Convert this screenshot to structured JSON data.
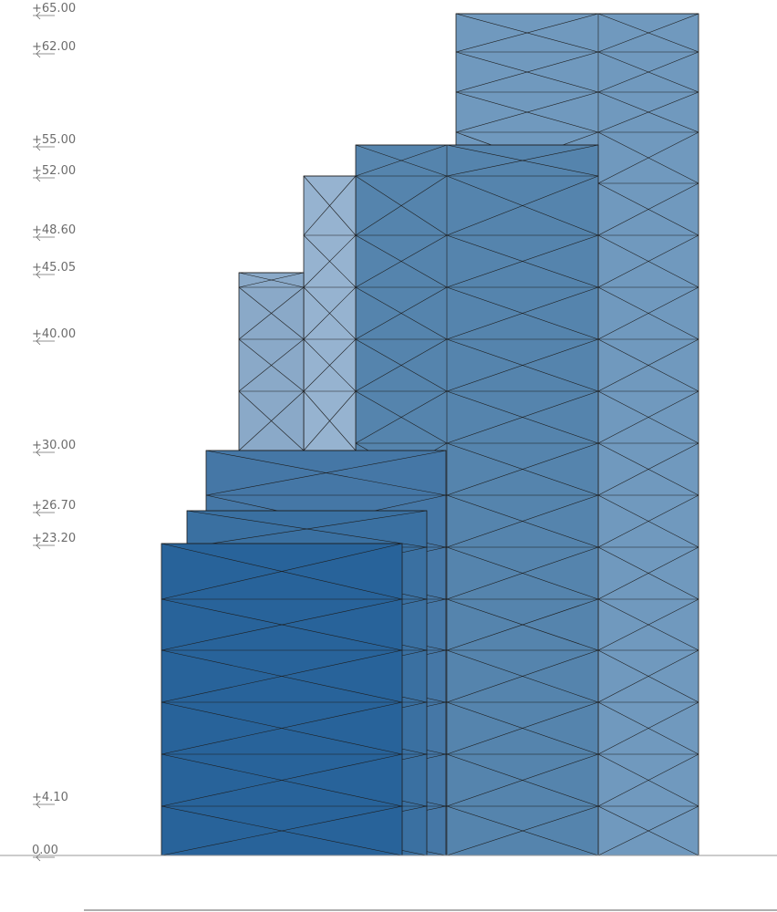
{
  "elevation": {
    "levels": [
      {
        "label": "+65.00",
        "value": 65.0
      },
      {
        "label": "+62.00",
        "value": 62.0
      },
      {
        "label": "+55.00",
        "value": 55.0
      },
      {
        "label": "+52.00",
        "value": 52.0
      },
      {
        "label": "+48.60",
        "value": 48.6
      },
      {
        "label": "+45.05",
        "value": 45.05
      },
      {
        "label": "+40.00",
        "value": 40.0
      },
      {
        "label": "+30.00",
        "value": 30.0
      },
      {
        "label": "+26.70",
        "value": 26.7
      },
      {
        "label": "+23.20",
        "value": 23.2
      },
      {
        "label": "+4.10",
        "value": 4.1
      },
      {
        "label": "0.00",
        "value": 0.0
      }
    ]
  },
  "colors": {
    "background": "#ffffff",
    "block_tallest": "#7099be",
    "block_main_tower": "#5584ad",
    "block_mid_left": "#8aa9c8",
    "block_step": "#96b3d0",
    "block_low_slab": "#4577a6",
    "block_low_slab_2": "#3a70a1",
    "block_front": "#28639a",
    "line": "#1d1d1d",
    "ground": "#9a9a9a",
    "text": "#6c6c6c"
  }
}
